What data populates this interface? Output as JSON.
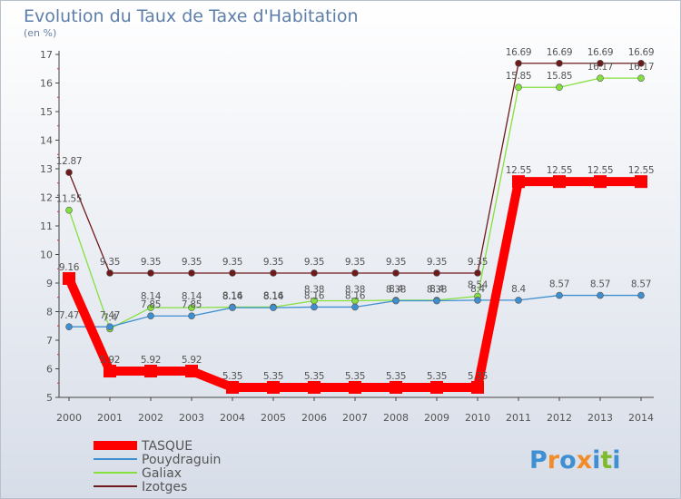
{
  "chart_data": {
    "type": "line",
    "title": "Evolution du Taux de Taxe d'Habitation",
    "subtitle": "(en %)",
    "x": [
      2000,
      2001,
      2002,
      2003,
      2004,
      2005,
      2006,
      2007,
      2008,
      2009,
      2010,
      2011,
      2012,
      2013,
      2014
    ],
    "ylim": [
      5,
      17
    ],
    "yticks": [
      5,
      6,
      7,
      8,
      9,
      10,
      11,
      12,
      13,
      14,
      15,
      16,
      17
    ],
    "grid": false,
    "legend_position": "bottom-left",
    "series": [
      {
        "name": "TASQUE",
        "color": "#ff0000",
        "values": [
          9.16,
          5.92,
          5.92,
          5.92,
          5.35,
          5.35,
          5.35,
          5.35,
          5.35,
          5.35,
          5.35,
          12.55,
          12.55,
          12.55,
          12.55
        ],
        "labels": [
          "9.16",
          "5.92",
          "5.92",
          "5.92",
          "5.35",
          "5.35",
          "5.35",
          "5.35",
          "5.35",
          "5.35",
          "5.35",
          "12.55",
          "12.55",
          "12.55",
          "12.55"
        ]
      },
      {
        "name": "Pouydraguin",
        "color": "#3d8fd1",
        "values": [
          7.47,
          7.47,
          7.85,
          7.85,
          8.14,
          8.14,
          8.16,
          8.16,
          8.38,
          8.38,
          8.4,
          8.4,
          8.57,
          8.57,
          8.57
        ],
        "labels": [
          "7.47",
          "7.47",
          "7.85",
          "7.85",
          "8.14",
          "8.14",
          "8.16",
          "8.16",
          "8.38",
          "8.38",
          "8.4",
          "8.4",
          "8.57",
          "8.57",
          "8.57"
        ]
      },
      {
        "name": "Galiax",
        "color": "#84e03e",
        "values": [
          11.55,
          7.4,
          8.14,
          8.14,
          8.16,
          8.16,
          8.38,
          8.38,
          8.4,
          8.4,
          8.54,
          15.85,
          15.85,
          16.17,
          16.17
        ],
        "labels": [
          "11.55",
          "7.4",
          "8.14",
          "8.14",
          "8.16",
          "8.16",
          "8.38",
          "8.38",
          "8.4",
          "8.4",
          "8.54",
          "15.85",
          "15.85",
          "16.17",
          "16.17"
        ]
      },
      {
        "name": "Izotges",
        "color": "#6e1a1a",
        "values": [
          12.87,
          9.35,
          9.35,
          9.35,
          9.35,
          9.35,
          9.35,
          9.35,
          9.35,
          9.35,
          9.35,
          16.69,
          16.69,
          16.69,
          16.69
        ],
        "labels": [
          "12.87",
          "9.35",
          "9.35",
          "9.35",
          "9.35",
          "9.35",
          "9.35",
          "9.35",
          "9.35",
          "9.35",
          "9.35",
          "16.69",
          "16.69",
          "16.69",
          "16.69"
        ]
      }
    ]
  },
  "logo": {
    "text": "Proxiti",
    "colors": [
      "#3f8fd2",
      "#f28c28",
      "#3f8fd2",
      "#f28c28",
      "#3f8fd2",
      "#7dbb2d",
      "#3f8fd2"
    ]
  },
  "colors": {
    "background_top": "#ffffff",
    "background_bottom": "#d7dde8",
    "title": "#5e7eaa",
    "axis": "#444444",
    "legend_text": "#6a7fa6"
  }
}
